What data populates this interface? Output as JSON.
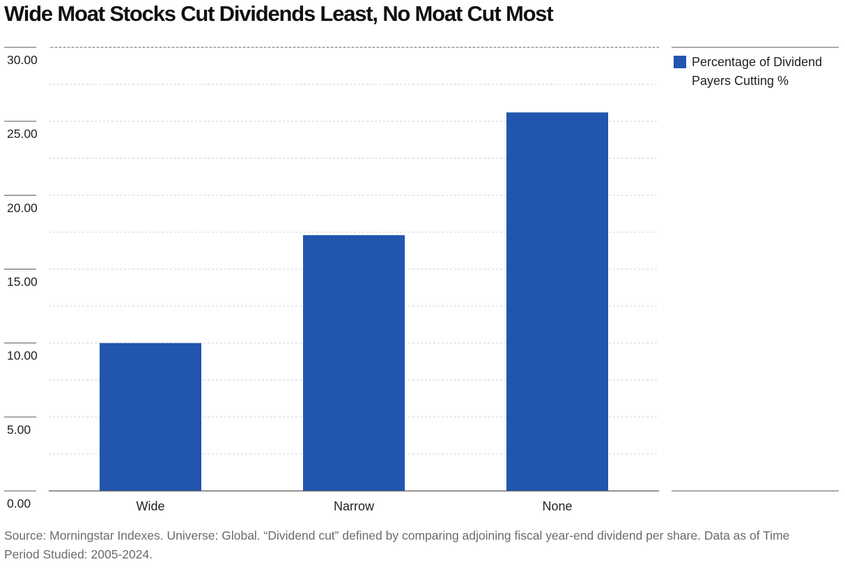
{
  "title": "Wide Moat Stocks Cut Dividends Least, No Moat Cut Most",
  "source_note": "Source: Morningstar Indexes. Universe: Global. “Dividend cut” defined by comparing adjoining fiscal year-end dividend per share. Data as of Time Period Studied: 2005-2024.",
  "legend": {
    "label": "Percentage of Dividend Payers Cutting %",
    "placement": "top-right"
  },
  "colors": {
    "bar": "#2155ae",
    "axis_line": "#555555",
    "grid": "#d4d4d4",
    "text": "#222222",
    "source_text": "#6b6b6b"
  },
  "chart_data": {
    "type": "bar",
    "title": "Wide Moat Stocks Cut Dividends Least, No Moat Cut Most",
    "xlabel": "",
    "ylabel": "",
    "categories": [
      "Wide",
      "Narrow",
      "None"
    ],
    "series": [
      {
        "name": "Percentage of Dividend Payers Cutting %",
        "values": [
          10.0,
          17.3,
          25.6
        ]
      }
    ],
    "ylim": [
      0,
      30
    ],
    "y_ticks": [
      "0.00",
      "5.00",
      "10.00",
      "15.00",
      "20.00",
      "25.00",
      "30.00"
    ],
    "grid": true,
    "legend_position": "top-right"
  }
}
